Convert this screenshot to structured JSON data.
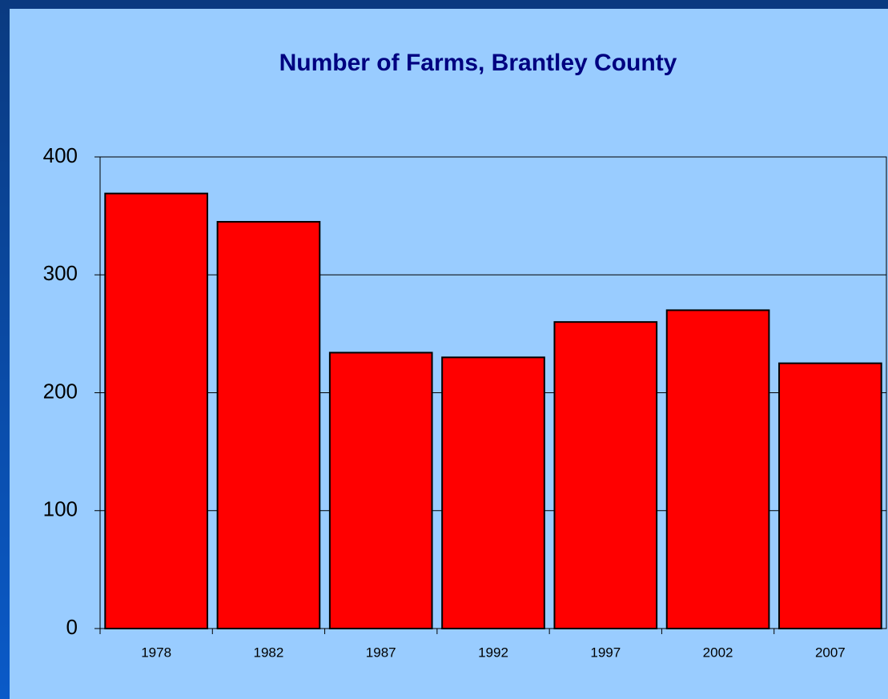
{
  "chart_data": {
    "type": "bar",
    "title": "Number of Farms, Brantley County",
    "categories": [
      "1978",
      "1982",
      "1987",
      "1992",
      "1997",
      "2002",
      "2007"
    ],
    "values": [
      369,
      345,
      234,
      230,
      260,
      270,
      225
    ],
    "color": "#ff0000",
    "ylim": [
      0,
      400
    ],
    "yticks": [
      0,
      100,
      200,
      300,
      400
    ],
    "grid": true
  }
}
